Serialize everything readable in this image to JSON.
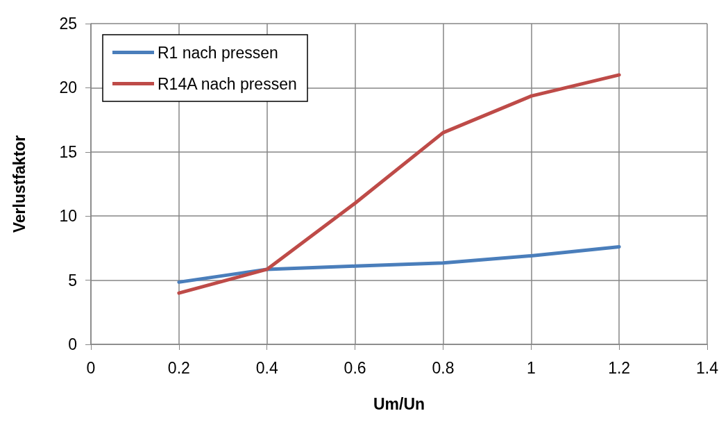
{
  "chart_data": {
    "type": "line",
    "xlabel": "Um/Un",
    "ylabel": "Verlustfaktor",
    "x": [
      0.2,
      0.4,
      0.6,
      0.8,
      1,
      1.2
    ],
    "series": [
      {
        "name": "R1 nach pressen",
        "color": "#4a7ebb",
        "values": [
          4.85,
          5.85,
          6.1,
          6.35,
          6.9,
          7.6
        ]
      },
      {
        "name": "R14A nach pressen",
        "color": "#be4b48",
        "values": [
          4.0,
          5.85,
          11.0,
          16.5,
          19.35,
          21.0
        ]
      }
    ],
    "xlim": [
      0,
      1.4
    ],
    "xticks": [
      0,
      0.2,
      0.4,
      0.6,
      0.8,
      1,
      1.2,
      1.4
    ],
    "ylim": [
      0,
      25
    ],
    "yticks": [
      0,
      5,
      10,
      15,
      20,
      25
    ],
    "grid": true,
    "legend": "top left",
    "marker": "none",
    "line_style": "solid"
  }
}
